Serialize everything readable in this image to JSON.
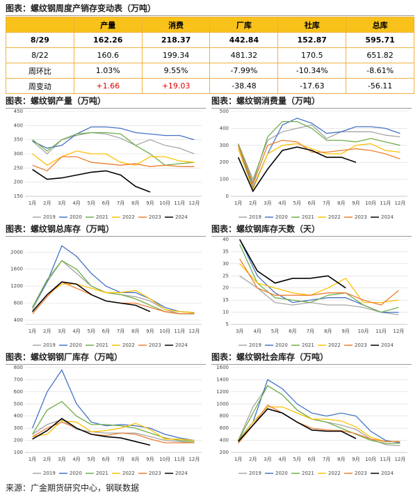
{
  "header": {
    "title": "图表：螺纹钢周度产销存变动表（万吨）"
  },
  "table": {
    "columns": [
      "产量",
      "消费",
      "厂库",
      "社库",
      "总库"
    ],
    "rows": [
      {
        "label": "8/29",
        "cells": [
          "162.26",
          "218.37",
          "442.84",
          "152.87",
          "595.71"
        ]
      },
      {
        "label": "8/22",
        "cells": [
          "160.6",
          "199.34",
          "481.32",
          "170.5",
          "651.82"
        ]
      },
      {
        "label": "周环比",
        "cells": [
          "1.03%",
          "9.55%",
          "-7.99%",
          "-10.34%",
          "-8.61%"
        ]
      },
      {
        "label": "周变动",
        "cells": [
          "+1.66",
          "+19.03",
          "-38.48",
          "-17.63",
          "-56.11"
        ]
      }
    ]
  },
  "chart_data": [
    {
      "type": "line",
      "title": "图表：螺纹钢产量（万吨）",
      "categories": [
        "1月",
        "2月",
        "3月",
        "4月",
        "5月",
        "6月",
        "7月",
        "8月",
        "9月",
        "10月",
        "11月",
        "12月"
      ],
      "ylim": [
        150,
        450
      ],
      "yticks": [
        150,
        200,
        250,
        300,
        350,
        400,
        450
      ],
      "grid": true,
      "series": [
        {
          "name": "2019",
          "color": "#a5a5a5",
          "values": [
            345,
            300,
            350,
            365,
            375,
            370,
            355,
            330,
            350,
            330,
            320,
            300
          ]
        },
        {
          "name": "2020",
          "color": "#4472c4",
          "values": [
            345,
            320,
            330,
            370,
            395,
            395,
            390,
            375,
            370,
            365,
            365,
            350
          ]
        },
        {
          "name": "2021",
          "color": "#70ad47",
          "values": [
            350,
            310,
            350,
            370,
            375,
            375,
            370,
            330,
            300,
            260,
            265,
            270
          ]
        },
        {
          "name": "2022",
          "color": "#ffc000",
          "values": [
            300,
            260,
            290,
            310,
            300,
            300,
            270,
            260,
            290,
            290,
            275,
            270
          ]
        },
        {
          "name": "2023",
          "color": "#ed7d31",
          "values": [
            260,
            240,
            290,
            290,
            270,
            265,
            260,
            265,
            255,
            260,
            255,
            255
          ]
        },
        {
          "name": "2024",
          "color": "#000000",
          "values": [
            245,
            210,
            215,
            225,
            235,
            240,
            225,
            185,
            165,
            null,
            null,
            null
          ]
        }
      ]
    },
    {
      "type": "line",
      "title": "图表：螺纹钢消费量（万吨）",
      "categories": [
        "1月",
        "2月",
        "3月",
        "4月",
        "5月",
        "6月",
        "7月",
        "8月",
        "9月",
        "10月",
        "11月",
        "12月"
      ],
      "ylim": [
        0,
        500
      ],
      "yticks": [
        0,
        100,
        200,
        300,
        400,
        500
      ],
      "grid": true,
      "series": [
        {
          "name": "2019",
          "color": "#a5a5a5",
          "values": [
            310,
            100,
            330,
            380,
            400,
            420,
            340,
            380,
            380,
            380,
            360,
            350
          ]
        },
        {
          "name": "2020",
          "color": "#4472c4",
          "values": [
            300,
            50,
            250,
            420,
            460,
            430,
            370,
            380,
            410,
            410,
            400,
            370
          ]
        },
        {
          "name": "2021",
          "color": "#70ad47",
          "values": [
            310,
            80,
            350,
            440,
            440,
            400,
            330,
            330,
            320,
            340,
            320,
            300
          ]
        },
        {
          "name": "2022",
          "color": "#ffc000",
          "values": [
            280,
            40,
            250,
            300,
            310,
            280,
            250,
            250,
            300,
            310,
            270,
            260
          ]
        },
        {
          "name": "2023",
          "color": "#ed7d31",
          "values": [
            300,
            70,
            300,
            330,
            320,
            260,
            260,
            270,
            280,
            270,
            250,
            220
          ]
        },
        {
          "name": "2024",
          "color": "#000000",
          "values": [
            230,
            30,
            160,
            270,
            290,
            270,
            230,
            230,
            200,
            null,
            null,
            null
          ]
        }
      ]
    },
    {
      "type": "line",
      "title": "图表：螺纹钢总库存（万吨）",
      "categories": [
        "1月",
        "2月",
        "3月",
        "4月",
        "5月",
        "6月",
        "7月",
        "8月",
        "9月",
        "10月",
        "11月",
        "12月"
      ],
      "ylim": [
        300,
        2300
      ],
      "yticks": [
        400,
        800,
        1200,
        1600,
        2000
      ],
      "grid": true,
      "series": [
        {
          "name": "2019",
          "color": "#a5a5a5",
          "values": [
            650,
            1300,
            1800,
            1500,
            1200,
            1050,
            1000,
            950,
            850,
            650,
            550,
            550
          ]
        },
        {
          "name": "2020",
          "color": "#4472c4",
          "values": [
            700,
            1300,
            2150,
            1900,
            1500,
            1200,
            1050,
            1050,
            900,
            700,
            600,
            580
          ]
        },
        {
          "name": "2021",
          "color": "#70ad47",
          "values": [
            700,
            1350,
            1800,
            1600,
            1200,
            1050,
            1000,
            900,
            750,
            600,
            550,
            550
          ]
        },
        {
          "name": "2022",
          "color": "#ffc000",
          "values": [
            600,
            1000,
            1250,
            1250,
            1150,
            1050,
            1050,
            1100,
            900,
            650,
            600,
            580
          ]
        },
        {
          "name": "2023",
          "color": "#ed7d31",
          "values": [
            550,
            950,
            1300,
            1150,
            1000,
            850,
            800,
            800,
            700,
            600,
            550,
            560
          ]
        },
        {
          "name": "2024",
          "color": "#000000",
          "values": [
            600,
            1000,
            1300,
            1250,
            1000,
            850,
            800,
            750,
            600,
            null,
            null,
            null
          ]
        }
      ]
    },
    {
      "type": "line",
      "title": "图表：螺纹钢库存天数（天）",
      "categories": [
        "3月",
        "4月",
        "5月",
        "6月",
        "7月",
        "8月",
        "9月",
        "10月",
        "11月",
        "12月"
      ],
      "ylim": [
        5,
        40
      ],
      "yticks": [
        5,
        10,
        15,
        20,
        25,
        30,
        35,
        40
      ],
      "grid": true,
      "series": [
        {
          "name": "2019",
          "color": "#a5a5a5",
          "values": [
            25,
            20,
            14,
            13,
            14,
            13,
            13,
            12,
            10,
            9
          ]
        },
        {
          "name": "2020",
          "color": "#4472c4",
          "values": [
            40,
            25,
            18,
            14,
            15,
            16,
            16,
            13,
            10,
            10
          ]
        },
        {
          "name": "2021",
          "color": "#70ad47",
          "values": [
            38,
            22,
            16,
            15,
            14,
            17,
            18,
            13,
            10,
            12
          ]
        },
        {
          "name": "2022",
          "color": "#ffc000",
          "values": [
            30,
            22,
            20,
            18,
            17,
            20,
            24,
            14,
            14,
            15
          ]
        },
        {
          "name": "2023",
          "color": "#ed7d31",
          "values": [
            32,
            20,
            17,
            17,
            17,
            18,
            18,
            15,
            13,
            19
          ]
        },
        {
          "name": "2024",
          "color": "#000000",
          "values": [
            40,
            27,
            22,
            24,
            24,
            25,
            20,
            null,
            null,
            null
          ]
        }
      ]
    },
    {
      "type": "line",
      "title": "图表：螺纹钢钢厂库存（万吨）",
      "categories": [
        "1月",
        "2月",
        "3月",
        "4月",
        "5月",
        "6月",
        "7月",
        "8月",
        "9月",
        "10月",
        "11月",
        "12月"
      ],
      "ylim": [
        100,
        800
      ],
      "yticks": [
        100,
        200,
        300,
        400,
        500,
        600,
        700,
        800
      ],
      "grid": true,
      "series": [
        {
          "name": "2019",
          "color": "#a5a5a5",
          "values": [
            250,
            330,
            370,
            290,
            270,
            260,
            260,
            260,
            230,
            200,
            190,
            180
          ]
        },
        {
          "name": "2020",
          "color": "#4472c4",
          "values": [
            300,
            600,
            780,
            500,
            350,
            320,
            330,
            320,
            300,
            250,
            220,
            200
          ]
        },
        {
          "name": "2021",
          "color": "#70ad47",
          "values": [
            250,
            450,
            520,
            400,
            330,
            330,
            320,
            300,
            260,
            220,
            200,
            190
          ]
        },
        {
          "name": "2022",
          "color": "#ffc000",
          "values": [
            230,
            250,
            360,
            350,
            270,
            280,
            300,
            340,
            290,
            210,
            210,
            200
          ]
        },
        {
          "name": "2023",
          "color": "#ed7d31",
          "values": [
            230,
            300,
            350,
            300,
            250,
            240,
            260,
            250,
            210,
            180,
            180,
            180
          ]
        },
        {
          "name": "2024",
          "color": "#000000",
          "values": [
            210,
            280,
            380,
            300,
            250,
            230,
            220,
            190,
            160,
            null,
            null,
            null
          ]
        }
      ]
    },
    {
      "type": "line",
      "title": "图表：螺纹钢社会库存（万吨）",
      "categories": [
        "1月",
        "2月",
        "3月",
        "4月",
        "5月",
        "6月",
        "7月",
        "8月",
        "9月",
        "10月",
        "11月",
        "12月"
      ],
      "ylim": [
        200,
        1600
      ],
      "yticks": [
        200,
        400,
        600,
        800,
        1000,
        1200,
        1400,
        1600
      ],
      "grid": true,
      "series": [
        {
          "name": "2019",
          "color": "#a5a5a5",
          "values": [
            400,
            950,
            1300,
            1150,
            900,
            750,
            700,
            650,
            580,
            420,
            330,
            310
          ]
        },
        {
          "name": "2020",
          "color": "#4472c4",
          "values": [
            400,
            700,
            1400,
            1250,
            1000,
            850,
            800,
            850,
            800,
            550,
            400,
            360
          ]
        },
        {
          "name": "2021",
          "color": "#70ad47",
          "values": [
            400,
            850,
            1300,
            1150,
            900,
            750,
            700,
            600,
            500,
            400,
            350,
            350
          ]
        },
        {
          "name": "2022",
          "color": "#ffc000",
          "values": [
            380,
            700,
            950,
            950,
            850,
            750,
            750,
            720,
            620,
            450,
            380,
            380
          ]
        },
        {
          "name": "2023",
          "color": "#ed7d31",
          "values": [
            350,
            650,
            980,
            850,
            700,
            600,
            570,
            560,
            510,
            420,
            380,
            380
          ]
        },
        {
          "name": "2024",
          "color": "#000000",
          "values": [
            380,
            650,
            920,
            850,
            700,
            570,
            550,
            550,
            430,
            null,
            null,
            null
          ]
        }
      ]
    }
  ],
  "footer": {
    "source": "来源：广金期货研究中心，钢联数据"
  }
}
